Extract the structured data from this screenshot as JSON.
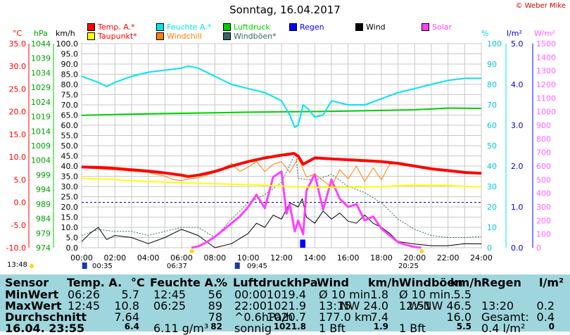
{
  "header": {
    "title": "Sonntag, 16.04.2017",
    "copyright": "© Weber Mike"
  },
  "axes": {
    "temp_unit": "°C",
    "press_unit": "hPa",
    "wind_unit": "km/h",
    "hum_unit": "%",
    "rain_unit": "l/m²",
    "solar_unit": "W/m²",
    "temp_ticks": [
      "35.0",
      "30.0",
      "25.0",
      "20.0",
      "15.0",
      "10.0",
      "5.0",
      "0.0",
      "-5.0",
      "-10.0"
    ],
    "press_ticks": [
      "1044",
      "1039",
      "1034",
      "1029",
      "1024",
      "1019",
      "1014",
      "1009",
      "1004",
      "999",
      "994",
      "989",
      "984",
      "979",
      "974"
    ],
    "wind_ticks": [
      "100.0",
      "95.0",
      "90.0",
      "85.0",
      "80.0",
      "75.0",
      "70.0",
      "65.0",
      "60.0",
      "55.0",
      "50.0",
      "45.0",
      "40.0",
      "35.0",
      "30.0",
      "25.0",
      "20.0",
      "15.0",
      "10.0",
      "5.0",
      "0.0"
    ],
    "hum_ticks": [
      "100",
      "90",
      "80",
      "70",
      "60",
      "50",
      "40",
      "30",
      "20",
      "10",
      "0"
    ],
    "rain_ticks": [
      "5.0",
      "4.0",
      "3.0",
      "2.0",
      "1.0",
      "0.0"
    ],
    "solar_ticks": [
      "1500",
      "1400",
      "1300",
      "1200",
      "1100",
      "1000",
      "900",
      "800",
      "700",
      "600",
      "500",
      "400",
      "300",
      "200",
      "100",
      "0"
    ],
    "x_ticks": [
      "00:00",
      "02:00",
      "04:00",
      "06:00",
      "08:00",
      "10:00",
      "12:00",
      "14:00",
      "16:00",
      "18:00",
      "20:00",
      "22:00",
      "24:00"
    ]
  },
  "legend": [
    {
      "label": "Temp. A.*",
      "color": "#ff0000"
    },
    {
      "label": "Feuchte A.*",
      "color": "#00e5ee"
    },
    {
      "label": "Luftdruck",
      "color": "#00cc00"
    },
    {
      "label": "Regen",
      "color": "#0000ff"
    },
    {
      "label": "Wind",
      "color": "#000000"
    },
    {
      "label": "Solar",
      "color": "#ff40ff"
    },
    {
      "label": "Taupunkt*",
      "color": "#ffff00"
    },
    {
      "label": "Windchill",
      "color": "#ff8000"
    },
    {
      "label": "Windböen*",
      "color": "#336666"
    }
  ],
  "sun": {
    "rise": "06:37",
    "set": "20:25",
    "moon_rise": "00:35",
    "moon_set": "09:45",
    "day_start": "13:48"
  },
  "table": {
    "headers": [
      "Sensor",
      "Temp. A.",
      "°C",
      "Feuchte A.",
      "%",
      "Luftdruck",
      "hPa",
      "Wind",
      "km/h",
      "Windböen",
      "km/h",
      "Regen",
      "l/m²"
    ],
    "rows": [
      {
        "label": "MinWert",
        "temp_t": "06:26",
        "temp_v": "5.7",
        "hum_t": "12:45",
        "hum_v": "56",
        "press_t": "00:00",
        "press_v": "1019.4",
        "wind_t": "Ø 10 min.",
        "wind_v": "1.8",
        "gust_t": "Ø 10 min.",
        "gust_v": "5.5",
        "rain_t": "",
        "rain_v": ""
      },
      {
        "label": "MaxWert",
        "temp_t": "12:45",
        "temp_v": "10.8",
        "hum_t": "06:25",
        "hum_v": "89",
        "press_t": "22:00",
        "press_v": "1021.9",
        "wind_t": "13:15",
        "wind_v": "NW 24.0",
        "gust_t": "12:51",
        "gust_v": "W-NW 46.5",
        "rain_t": "13:20",
        "rain_v": "0.2"
      },
      {
        "label": "Durchschnitt",
        "temp_t": "",
        "temp_v": "7.64",
        "hum_t": "",
        "hum_v": "78",
        "press_t": "^0.6hPa/h",
        "press_v": "1020.7",
        "wind_t": "177.0 km",
        "wind_v": "7.4",
        "gust_t": "",
        "gust_v": "16.0",
        "rain_t": "Gesamt:",
        "rain_v": "0.4"
      },
      {
        "label": "16.04. 23:55",
        "temp_t": "",
        "temp_v": "6.4",
        "hum_t": "6.11 g/m³",
        "hum_v": "82",
        "press_t": "sonnig",
        "press_v": "1021.8",
        "wind_t": "1 Bft",
        "wind_v": "1.9",
        "gust_t": "1 Bft",
        "gust_v": "5.5",
        "rain_t": "0.4 l/m²",
        "rain_v": "0"
      }
    ]
  },
  "chart_data": {
    "type": "line",
    "title": "Sonntag, 16.04.2017",
    "x_unit": "hour of day",
    "xlim": [
      0,
      24
    ],
    "series": [
      {
        "name": "Temp. A.*",
        "unit": "°C",
        "color": "#ff0000",
        "x": [
          0,
          1,
          2,
          3,
          4,
          5,
          6,
          6.4,
          7,
          8,
          9,
          10,
          11,
          12,
          12.75,
          13,
          13.3,
          14,
          15,
          16,
          17,
          18,
          19,
          20,
          21,
          22,
          23,
          24
        ],
        "y": [
          7.8,
          7.7,
          7.5,
          7.2,
          6.9,
          6.5,
          6.0,
          5.7,
          6.0,
          6.8,
          8.0,
          9.0,
          9.8,
          10.4,
          10.8,
          10.2,
          8.4,
          9.8,
          9.6,
          9.4,
          9.2,
          9.0,
          8.6,
          8.0,
          7.4,
          7.0,
          6.6,
          6.4
        ]
      },
      {
        "name": "Feuchte A.*",
        "unit": "%",
        "color": "#00e5ee",
        "x": [
          0,
          1,
          1.5,
          2,
          3,
          4,
          5,
          6,
          6.4,
          7,
          8,
          9,
          10,
          11,
          11.5,
          12,
          12.5,
          12.8,
          13,
          13.3,
          13.6,
          14,
          14.5,
          15,
          16,
          17,
          18,
          19,
          20,
          21,
          22,
          23,
          24
        ],
        "y": [
          84,
          81,
          79,
          81,
          84,
          86,
          87,
          88,
          89,
          88,
          84,
          80,
          78,
          76,
          74,
          72,
          65,
          59,
          60,
          70,
          68,
          64,
          65,
          72,
          70,
          70,
          73,
          76,
          78,
          80,
          82,
          83,
          83
        ]
      },
      {
        "name": "Luftdruck",
        "unit": "hPa",
        "color": "#00cc00",
        "x": [
          0,
          2,
          4,
          6,
          8,
          10,
          12,
          14,
          16,
          18,
          20,
          22,
          24
        ],
        "y": [
          1019.4,
          1019.7,
          1019.9,
          1020.1,
          1020.3,
          1020.5,
          1020.6,
          1020.7,
          1020.9,
          1021.1,
          1021.3,
          1021.9,
          1021.8
        ]
      },
      {
        "name": "Taupunkt*",
        "unit": "°C",
        "color": "#ffff00",
        "x": [
          0,
          2,
          4,
          6,
          8,
          10,
          12,
          14,
          16,
          18,
          20,
          22,
          24
        ],
        "y": [
          5.3,
          5.0,
          4.6,
          4.3,
          4.1,
          3.9,
          3.6,
          3.3,
          3.3,
          3.5,
          3.8,
          3.7,
          3.4
        ]
      },
      {
        "name": "Windchill",
        "unit": "°C",
        "color": "#ff8000",
        "x": [
          0,
          2,
          4,
          5,
          5.5,
          6,
          6.5,
          7,
          8,
          8.5,
          9,
          9.5,
          10,
          10.5,
          11,
          11.5,
          12,
          12.5,
          13,
          13.5,
          14,
          14.5,
          15,
          15.5,
          16,
          16.5,
          17,
          17.5,
          18,
          18.5,
          19,
          20,
          24
        ],
        "y": [
          7.6,
          7.2,
          6.6,
          5.8,
          5.0,
          4.8,
          5.2,
          5.4,
          6.6,
          7.5,
          8.6,
          6.8,
          7.8,
          9.0,
          6.8,
          8.4,
          9.0,
          6.6,
          9.8,
          5.6,
          6.2,
          4.8,
          3.4,
          7.2,
          5.2,
          8.0,
          4.6,
          7.6,
          5.0,
          8.4,
          8.6,
          8.0,
          6.4
        ]
      },
      {
        "name": "Wind",
        "unit": "km/h",
        "color": "#000000",
        "x": [
          0,
          0.5,
          1,
          1.5,
          2,
          3,
          4,
          5,
          6,
          7,
          8,
          9,
          10,
          10.5,
          11,
          11.5,
          12,
          12.5,
          13,
          13.25,
          13.5,
          14,
          14.5,
          15,
          15.5,
          16,
          16.5,
          17,
          17.5,
          18,
          18.5,
          19,
          20,
          21,
          22,
          23,
          24
        ],
        "y": [
          3,
          7,
          10,
          4,
          6,
          5,
          2,
          5,
          9,
          6,
          0,
          2,
          7,
          12,
          10,
          16,
          14,
          22,
          20,
          24,
          15,
          12,
          18,
          14,
          17,
          13,
          12,
          16,
          12,
          10,
          7,
          3,
          1.8,
          1,
          1,
          2,
          1.9
        ]
      },
      {
        "name": "Windböen*",
        "unit": "km/h",
        "color": "#336666",
        "x": [
          0,
          1,
          2,
          3,
          4,
          5,
          6,
          7,
          8,
          9,
          10,
          11,
          12,
          12.85,
          13,
          14,
          15,
          16,
          17,
          18,
          19,
          20,
          21,
          22,
          23,
          24
        ],
        "y": [
          6,
          9,
          8,
          8,
          6,
          8,
          10,
          10,
          5,
          14,
          22,
          26,
          32,
          46.5,
          34,
          33,
          36,
          30,
          27,
          22,
          14,
          9,
          6,
          5,
          5,
          5.5
        ]
      },
      {
        "name": "Solar",
        "unit": "W/m²",
        "color": "#ff40ff",
        "x": [
          6.6,
          7,
          7.5,
          8,
          8.5,
          9,
          9.5,
          10,
          10.5,
          11,
          11.5,
          12,
          12.3,
          12.5,
          12.8,
          13,
          13.3,
          13.5,
          14,
          14.5,
          15,
          15.5,
          16,
          16.5,
          17,
          17.5,
          18,
          18.5,
          19,
          19.5,
          20,
          20.4
        ],
        "y": [
          0,
          10,
          40,
          80,
          130,
          180,
          230,
          300,
          390,
          290,
          520,
          560,
          250,
          320,
          120,
          200,
          100,
          420,
          540,
          280,
          500,
          360,
          300,
          320,
          200,
          230,
          140,
          90,
          40,
          20,
          5,
          0
        ]
      },
      {
        "name": "Regen",
        "unit": "l/m²",
        "color": "#0000ff",
        "x": [
          13.2,
          13.35
        ],
        "y": [
          0.2,
          0.2
        ]
      }
    ],
    "axes": {
      "temp": {
        "unit": "°C",
        "range": [
          -10,
          35
        ]
      },
      "pressure": {
        "unit": "hPa",
        "range": [
          974,
          1044
        ]
      },
      "wind": {
        "unit": "km/h",
        "range": [
          0,
          100
        ]
      },
      "humidity": {
        "unit": "%",
        "range": [
          0,
          100
        ]
      },
      "rain": {
        "unit": "l/m²",
        "range": [
          0,
          5
        ]
      },
      "solar": {
        "unit": "W/m²",
        "range": [
          0,
          1500
        ]
      }
    },
    "grid": true
  }
}
